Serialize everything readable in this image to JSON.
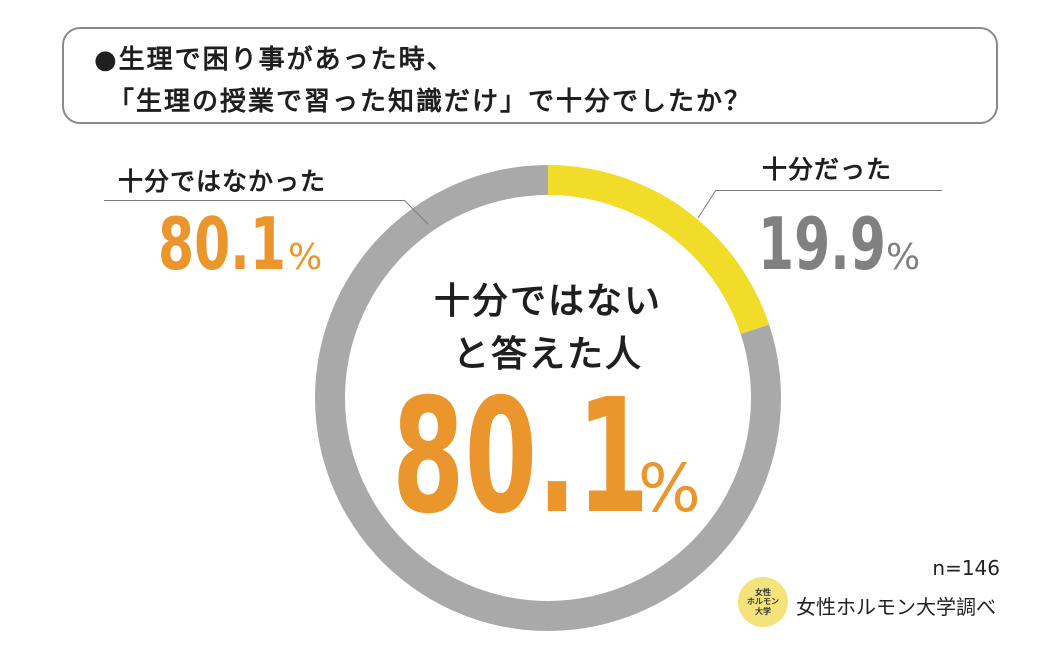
{
  "question": {
    "line1": "●生理で困り事があった時、",
    "line2": "「生理の授業で習った知識だけ」で十分でしたか？"
  },
  "colors": {
    "not_enough": "#a9a9a9",
    "enough": "#f1dc2a",
    "accent_orange": "#ea962c",
    "gray_text": "#808080"
  },
  "chart_data": {
    "type": "pie",
    "donut": true,
    "start_angle_deg": 0,
    "direction": "clockwise",
    "slices": [
      {
        "label": "十分だった",
        "value": 19.9,
        "display": "19.9",
        "unit": "%"
      },
      {
        "label": "十分ではなかった",
        "value": 80.1,
        "display": "80.1",
        "unit": "%"
      }
    ],
    "center": {
      "line1": "十分ではない",
      "line2": "と答えた人",
      "value": "80.1",
      "unit": "%"
    }
  },
  "footer": {
    "sample": "n=146",
    "logo_lines": [
      "女性",
      "ホルモン",
      "大学"
    ],
    "source": "女性ホルモン大学調べ"
  }
}
